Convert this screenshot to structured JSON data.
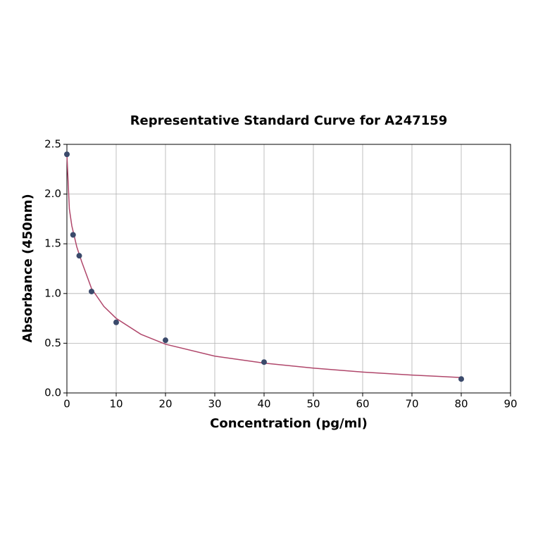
{
  "chart_data": {
    "type": "scatter",
    "title": "Representative Standard Curve for A247159",
    "xlabel": "Concentration (pg/ml)",
    "ylabel": "Absorbance (450nm)",
    "x": [
      0,
      1.25,
      2.5,
      5,
      10,
      20,
      40,
      80
    ],
    "y": [
      2.4,
      1.59,
      1.38,
      1.02,
      0.71,
      0.53,
      0.31,
      0.14
    ],
    "point_color": "#3b4a6b",
    "curve": {
      "x": [
        0,
        0.5,
        1,
        2,
        3,
        5,
        7.5,
        10,
        15,
        20,
        30,
        40,
        50,
        60,
        70,
        80
      ],
      "y": [
        2.4,
        1.85,
        1.68,
        1.47,
        1.32,
        1.05,
        0.87,
        0.75,
        0.59,
        0.49,
        0.37,
        0.3,
        0.25,
        0.21,
        0.18,
        0.155
      ],
      "color": "#b0476b"
    },
    "xlim": [
      0,
      90
    ],
    "ylim": [
      0,
      2.5
    ],
    "xticks": [
      0,
      10,
      20,
      30,
      40,
      50,
      60,
      70,
      80,
      90
    ],
    "yticks": [
      {
        "value": 0,
        "label": "0.0"
      },
      0.5,
      {
        "value": 1,
        "label": "1.0"
      },
      1.5,
      {
        "value": 2,
        "label": "2.0"
      },
      2.5
    ],
    "grid": true
  }
}
